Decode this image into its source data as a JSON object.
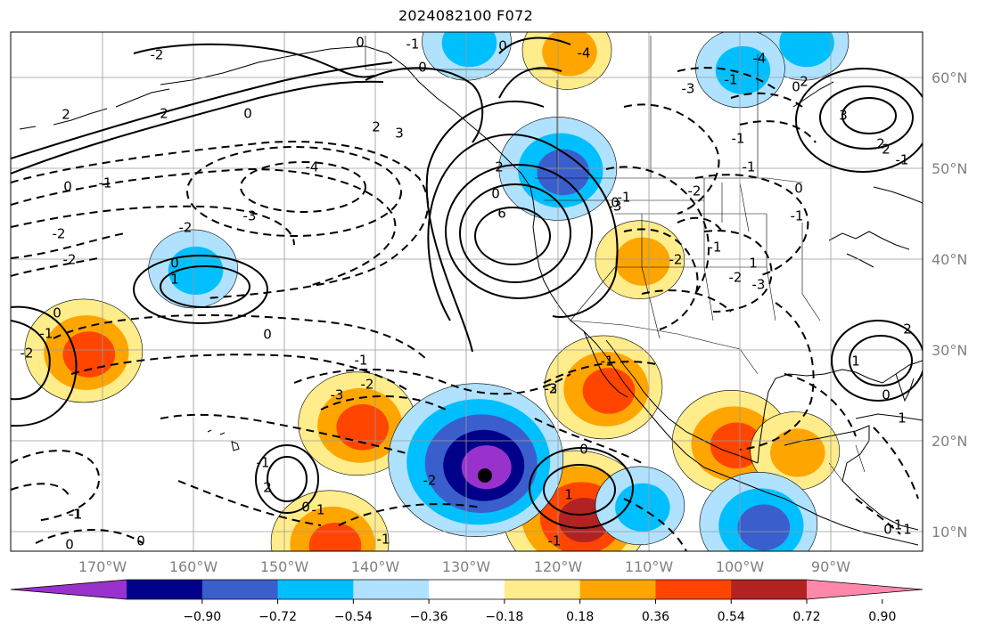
{
  "title": "2024082100 F072",
  "map": {
    "latitude_labels": [
      "60°N",
      "50°N",
      "40°N",
      "30°N",
      "20°N",
      "10°N"
    ],
    "longitude_labels": [
      "170°W",
      "160°W",
      "150°W",
      "140°W",
      "130°W",
      "120°W",
      "110°W",
      "100°W",
      "90°W"
    ],
    "contour_labels": [
      "0",
      "-1",
      "0",
      "-2",
      "2",
      "2",
      "0",
      "3",
      "2",
      "-4",
      "-3",
      "-2",
      "-2",
      "-2",
      "-1",
      "0",
      "-1",
      "0",
      "1",
      "0",
      "6",
      "-2",
      "-3",
      "-1",
      "-1",
      "-2",
      "-2",
      "-1",
      "2",
      "-2",
      "3",
      "2",
      "-3",
      "-1",
      "-2",
      "-3",
      "-4",
      "0",
      "2",
      "-1",
      "0",
      "-1",
      "0",
      "1",
      "2",
      "-1",
      "-2",
      "-1",
      "0",
      "0",
      "-1",
      "0",
      "0",
      "-2",
      "-1",
      "-1",
      "-1",
      "-3",
      "-1",
      "-1",
      "0",
      "0",
      "-1",
      "0",
      "-4",
      "-3",
      "0",
      "1",
      "2",
      "1",
      "-1",
      "2",
      "0",
      "1",
      "1",
      "0"
    ]
  },
  "chart_data": {
    "type": "heatmap",
    "title": "2024082100 F072",
    "region": {
      "lon_range": [
        -180,
        -80
      ],
      "lat_range": [
        8,
        65
      ]
    },
    "field_description": "shaded anomaly field with solid (positive) and dashed (negative) contours",
    "colorbar": {
      "ticks": [
        "−0.90",
        "−0.72",
        "−0.54",
        "−0.36",
        "−0.18",
        "0.18",
        "0.36",
        "0.54",
        "0.72",
        "0.90"
      ],
      "levels": [
        -0.9,
        -0.72,
        -0.54,
        -0.36,
        -0.18,
        0.18,
        0.36,
        0.54,
        0.72,
        0.9
      ],
      "colors": [
        "#9932cc",
        "#00008b",
        "#3a5fcd",
        "#00bfff",
        "#b0e2ff",
        "#ffffff",
        "#ffec8b",
        "#ffa500",
        "#ff4500",
        "#b22222",
        "#ff88aa"
      ],
      "extend": "both"
    },
    "positive_anomaly_areas": [
      {
        "lon": -118,
        "lat": 12,
        "peak": 0.72
      },
      {
        "lon": -172,
        "lat": 30,
        "peak": 0.54
      },
      {
        "lon": -142,
        "lat": 22,
        "peak": 0.54
      },
      {
        "lon": -115,
        "lat": 26,
        "peak": 0.54
      },
      {
        "lon": -101,
        "lat": 20,
        "peak": 0.54
      },
      {
        "lon": -145,
        "lat": 9,
        "peak": 0.54
      },
      {
        "lon": -119,
        "lat": 63,
        "peak": 0.36
      },
      {
        "lon": -111,
        "lat": 40,
        "peak": 0.36
      },
      {
        "lon": -94,
        "lat": 19,
        "peak": 0.36
      }
    ],
    "negative_anomaly_areas": [
      {
        "lon": -129,
        "lat": 18,
        "peak": -0.9
      },
      {
        "lon": -120,
        "lat": 50,
        "peak": -0.54
      },
      {
        "lon": -98,
        "lat": 11,
        "peak": -0.54
      },
      {
        "lon": -130,
        "lat": 64,
        "peak": -0.36
      },
      {
        "lon": -111,
        "lat": 13,
        "peak": -0.36
      },
      {
        "lon": -93,
        "lat": 64,
        "peak": -0.36
      },
      {
        "lon": -100,
        "lat": 61,
        "peak": -0.36
      },
      {
        "lon": -160,
        "lat": 39,
        "peak": -0.36
      }
    ],
    "contour_extrema": [
      {
        "lon": -125,
        "lat": 42,
        "value": 6
      },
      {
        "lon": -87,
        "lat": 55,
        "value": 3
      },
      {
        "lon": -160,
        "lat": 38,
        "value": 1
      },
      {
        "lon": -149,
        "lat": 15,
        "value": 2
      },
      {
        "lon": -117,
        "lat": 13,
        "value": 1
      },
      {
        "lon": -84,
        "lat": 29,
        "value": 3
      },
      {
        "lon": -145,
        "lat": 48,
        "value": -4
      },
      {
        "lon": -101,
        "lat": 37,
        "value": -3
      }
    ]
  }
}
